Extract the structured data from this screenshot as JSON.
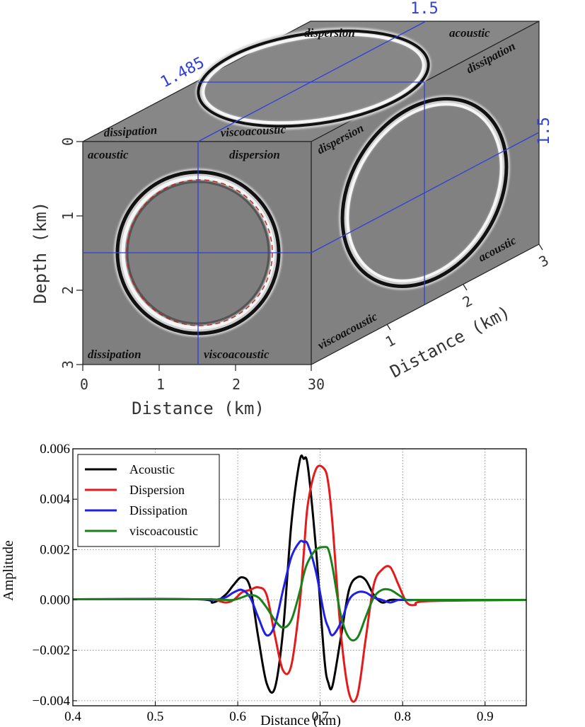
{
  "chart_data": [
    {
      "type": "heatmap",
      "subtype": "3d-cube-wavefield",
      "front_face": {
        "xlabel": "Distance (km)",
        "ylabel": "Depth (km)",
        "x_ticks": [
          "0",
          "1",
          "2",
          "30"
        ],
        "y_ticks": [
          "0",
          "1",
          "2",
          "3"
        ],
        "quadrant_labels": {
          "top_left": "acoustic",
          "top_right": "dispersion",
          "bottom_left": "dissipation",
          "bottom_right": "viscoacoustic"
        },
        "slice_depth": "1.5",
        "slice_distance": "1.485"
      },
      "top_face": {
        "labels": [
          "dissipation",
          "viscoacoustic",
          "dispersion",
          "acoustic"
        ],
        "slice_label_left": "1.485",
        "slice_label_right": "1.5"
      },
      "side_face": {
        "xlabel": "Distance (km)",
        "x_ticks": [
          "1",
          "2",
          "3"
        ],
        "labels": [
          "dispersion",
          "dissipation",
          "viscoacoustic",
          "acoustic"
        ],
        "slice_label": "1.5"
      },
      "colors": {
        "slice_line": "#2f3fd8",
        "background": "#808080",
        "dashed_circle": "#c02020"
      }
    },
    {
      "type": "line",
      "xlabel": "Distance (km)",
      "ylabel": "Amplitude",
      "xlim": [
        0.4,
        0.95
      ],
      "ylim": [
        -0.0042,
        0.006
      ],
      "x_ticks": [
        0.4,
        0.5,
        0.6,
        0.7,
        0.8,
        0.9
      ],
      "x_tick_labels": [
        "0.4",
        "0.5",
        "0.6",
        "0.7",
        "0.8",
        "0.9"
      ],
      "y_ticks": [
        -0.004,
        -0.002,
        0.0,
        0.002,
        0.004,
        0.006
      ],
      "y_tick_labels": [
        "−0.004",
        "−0.002",
        "0.000",
        "0.002",
        "0.004",
        "0.006"
      ],
      "grid": true,
      "legend_position": "top-left",
      "x": [
        0.4,
        0.55,
        0.57,
        0.585,
        0.595,
        0.605,
        0.615,
        0.625,
        0.635,
        0.645,
        0.655,
        0.665,
        0.675,
        0.68,
        0.685,
        0.695,
        0.705,
        0.71,
        0.715,
        0.725,
        0.735,
        0.745,
        0.755,
        0.765,
        0.775,
        0.785,
        0.795,
        0.805,
        0.815,
        0.83,
        0.95
      ],
      "series": [
        {
          "name": "Acoustic",
          "color": "#000000",
          "values": [
            3e-05,
            3e-05,
            -0.0001,
            0.0002,
            0.0006,
            0.0009,
            0.0005,
            -0.0015,
            -0.0033,
            -0.0035,
            -0.0012,
            0.003,
            0.0055,
            0.0056,
            0.0053,
            0.002,
            -0.0023,
            -0.0033,
            -0.0034,
            -0.0015,
            0.0004,
            0.0009,
            0.0008,
            0.0002,
            -0.0001,
            0.0,
            0.0,
            0.0,
            0.0,
            0.0,
            0.0
          ]
        },
        {
          "name": "Dispersion",
          "color": "#e41a1c",
          "values": [
            3e-05,
            3e-05,
            2e-05,
            -0.0001,
            0.0,
            0.0003,
            0.0004,
            0.0005,
            0.0002,
            -0.0014,
            -0.0028,
            -0.0026,
            -0.0002,
            0.0018,
            0.0038,
            0.0052,
            0.0052,
            0.0046,
            0.003,
            -0.0013,
            -0.0037,
            -0.0038,
            -0.0016,
            0.0006,
            0.0012,
            0.0013,
            0.0006,
            -0.0001,
            -0.0002,
            -5e-05,
            0.0
          ]
        },
        {
          "name": "Dissipation",
          "color": "#1f1fe6",
          "values": [
            3e-05,
            3e-05,
            0.0,
            0.0001,
            0.0003,
            0.0004,
            0.0001,
            -0.0007,
            -0.0014,
            -0.001,
            0.0004,
            0.0017,
            0.0023,
            0.0023,
            0.0022,
            0.0011,
            -0.0006,
            -0.0011,
            -0.0014,
            -0.0009,
            0.0,
            0.0003,
            0.0003,
            0.0001,
            0.0,
            -0.0001,
            0.0,
            0.0,
            0.0,
            0.0,
            0.0
          ]
        },
        {
          "name": "viscoacoustic",
          "color": "#1a801a",
          "values": [
            3e-05,
            3e-05,
            2e-05,
            0.0,
            0.0,
            0.0001,
            0.0002,
            0.0001,
            -0.0003,
            -0.0008,
            -0.0011,
            -0.0008,
            0.0003,
            0.001,
            0.0015,
            0.002,
            0.0021,
            0.002,
            0.0013,
            -0.0006,
            -0.0015,
            -0.0015,
            -0.0007,
            0.0001,
            0.0004,
            0.0004,
            0.0002,
            0.0,
            0.0,
            0.0,
            0.0
          ]
        }
      ]
    }
  ]
}
